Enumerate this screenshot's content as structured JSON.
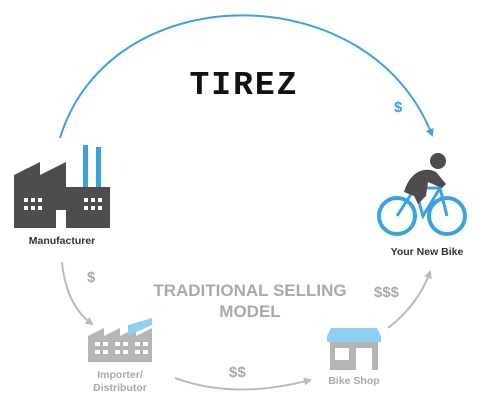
{
  "brand": {
    "logo_text": "TIREZ"
  },
  "title": {
    "line1": "TRADITIONAL SELLING",
    "line2": "MODEL"
  },
  "nodes": {
    "manufacturer": {
      "label": "Manufacturer"
    },
    "importer": {
      "label_line1": "Importer/",
      "label_line2": "Distributor"
    },
    "bike_shop": {
      "label": "Bike Shop"
    },
    "your_bike": {
      "label": "Your New Bike"
    }
  },
  "flows": {
    "direct": "$",
    "manufacturer_to_importer": "$",
    "importer_to_shop": "$$",
    "shop_to_customer": "$$$"
  },
  "colors": {
    "accent_blue": "#3aa3dd",
    "dark_gray": "#4d4d4f",
    "light_gray": "#b5b5b5",
    "text_dark": "#333333"
  },
  "icons": [
    "factory-icon",
    "warehouse-icon",
    "shop-icon",
    "cyclist-icon"
  ]
}
